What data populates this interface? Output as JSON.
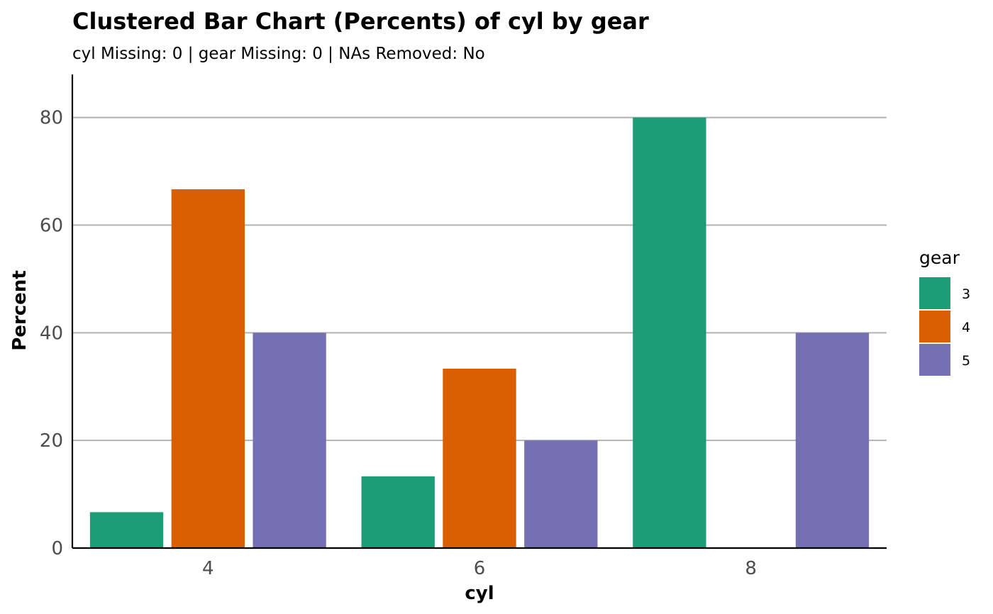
{
  "chart_data": {
    "type": "bar",
    "title": "Clustered Bar Chart (Percents) of cyl by gear",
    "subtitle": "cyl Missing: 0 | gear Missing: 0 | NAs Removed: No",
    "xlabel": "cyl",
    "ylabel": "Percent",
    "categories": [
      "4",
      "6",
      "8"
    ],
    "ylim": [
      0,
      88
    ],
    "yticks": [
      0,
      20,
      40,
      60,
      80
    ],
    "grid": "horizontal",
    "legend": {
      "title": "gear",
      "position": "right"
    },
    "series": [
      {
        "name": "3",
        "color": "#1b9e77",
        "values": [
          6.67,
          13.33,
          80
        ]
      },
      {
        "name": "4",
        "color": "#d95f02",
        "values": [
          66.67,
          33.33,
          0
        ]
      },
      {
        "name": "5",
        "color": "#7570b3",
        "values": [
          40,
          20,
          40
        ]
      }
    ]
  }
}
